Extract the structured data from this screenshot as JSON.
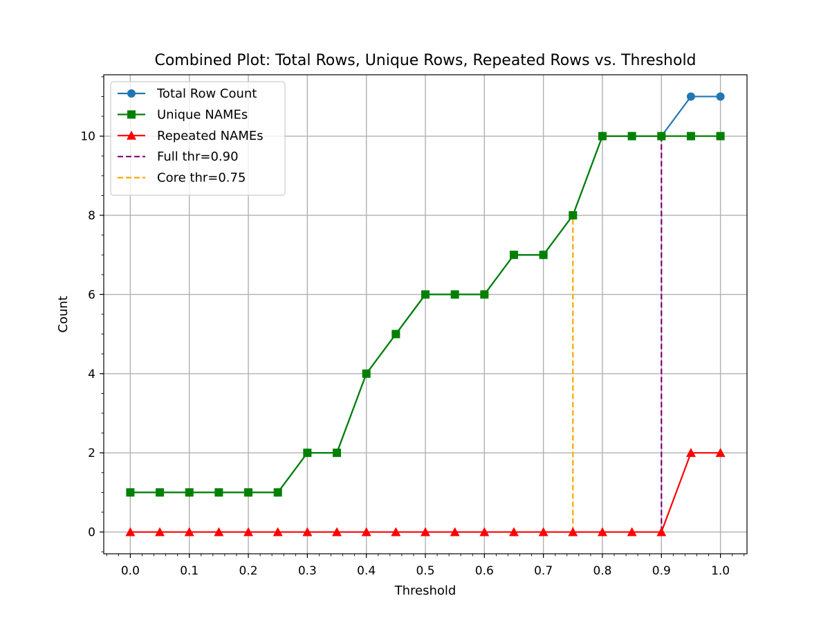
{
  "chart_data": {
    "type": "line",
    "title": "Combined Plot: Total Rows, Unique Rows, Repeated Rows vs. Threshold",
    "xlabel": "Threshold",
    "ylabel": "Count",
    "xlim": [
      -0.045,
      1.045
    ],
    "ylim": [
      -0.55,
      11.55
    ],
    "grid": true,
    "legend_position": "upper-left",
    "x": [
      0.0,
      0.05,
      0.1,
      0.15,
      0.2,
      0.25,
      0.3,
      0.35,
      0.4,
      0.45,
      0.5,
      0.55,
      0.6,
      0.65,
      0.7,
      0.75,
      0.8,
      0.85,
      0.9,
      0.95,
      1.0
    ],
    "xticks": [
      0.0,
      0.1,
      0.2,
      0.3,
      0.4,
      0.5,
      0.6,
      0.7,
      0.8,
      0.9,
      1.0
    ],
    "xtick_labels": [
      "0.0",
      "0.1",
      "0.2",
      "0.3",
      "0.4",
      "0.5",
      "0.6",
      "0.7",
      "0.8",
      "0.9",
      "1.0"
    ],
    "yticks": [
      0,
      2,
      4,
      6,
      8,
      10
    ],
    "ytick_labels": [
      "0",
      "2",
      "4",
      "6",
      "8",
      "10"
    ],
    "series": [
      {
        "name": "Total Row Count",
        "color": "#1f77b4",
        "marker": "circle",
        "values": [
          1,
          1,
          1,
          1,
          1,
          1,
          2,
          2,
          4,
          5,
          6,
          6,
          6,
          7,
          7,
          8,
          10,
          10,
          10,
          11,
          11
        ]
      },
      {
        "name": "Unique NAMEs",
        "color": "#008000",
        "marker": "square",
        "values": [
          1,
          1,
          1,
          1,
          1,
          1,
          2,
          2,
          4,
          5,
          6,
          6,
          6,
          7,
          7,
          8,
          10,
          10,
          10,
          10,
          10
        ]
      },
      {
        "name": "Repeated NAMEs",
        "color": "#ff0000",
        "marker": "triangle",
        "values": [
          0,
          0,
          0,
          0,
          0,
          0,
          0,
          0,
          0,
          0,
          0,
          0,
          0,
          0,
          0,
          0,
          0,
          0,
          0,
          2,
          2
        ]
      }
    ],
    "vlines": [
      {
        "name": "Full thr=0.90",
        "x": 0.9,
        "y0": 0,
        "y1": 10,
        "color": "#800080",
        "style": "dashed"
      },
      {
        "name": "Core thr=0.75",
        "x": 0.75,
        "y0": 0,
        "y1": 8,
        "color": "#ffa500",
        "style": "dashed"
      }
    ]
  }
}
